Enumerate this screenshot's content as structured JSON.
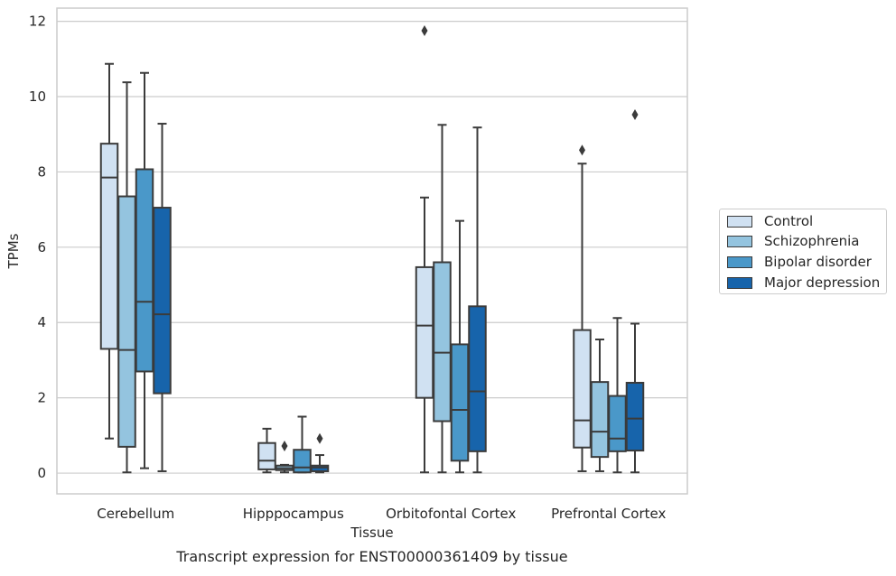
{
  "chart_data": {
    "type": "boxplot",
    "xlabel": "Tissue",
    "ylabel": "TPMs",
    "caption": "Transcript expression for ENST00000361409 by tissue",
    "categories": [
      "Cerebellum",
      "Hipppocampus",
      "Orbitofontal Cortex",
      "Prefrontal Cortex"
    ],
    "ylim": [
      -0.55,
      12.35
    ],
    "yticks": [
      0,
      2,
      4,
      6,
      8,
      10,
      12
    ],
    "grid": true,
    "legend_position": "right",
    "series": [
      {
        "name": "Control",
        "color": "#d0e1f2",
        "boxes": [
          {
            "whisker_low": 0.92,
            "q1": 3.3,
            "median": 7.85,
            "q3": 8.75,
            "whisker_high": 10.87,
            "outliers": []
          },
          {
            "whisker_low": 0.02,
            "q1": 0.1,
            "median": 0.33,
            "q3": 0.8,
            "whisker_high": 1.18,
            "outliers": []
          },
          {
            "whisker_low": 0.02,
            "q1": 2.0,
            "median": 3.92,
            "q3": 5.47,
            "whisker_high": 7.32,
            "outliers": [
              11.75
            ]
          },
          {
            "whisker_low": 0.05,
            "q1": 0.68,
            "median": 1.4,
            "q3": 3.8,
            "whisker_high": 8.22,
            "outliers": [
              8.58
            ]
          }
        ]
      },
      {
        "name": "Schizophrenia",
        "color": "#94c4df",
        "boxes": [
          {
            "whisker_low": 0.02,
            "q1": 0.7,
            "median": 3.27,
            "q3": 7.35,
            "whisker_high": 10.38,
            "outliers": []
          },
          {
            "whisker_low": 0.02,
            "q1": 0.08,
            "median": 0.13,
            "q3": 0.2,
            "whisker_high": 0.22,
            "outliers": [
              0.72
            ]
          },
          {
            "whisker_low": 0.02,
            "q1": 1.38,
            "median": 3.2,
            "q3": 5.6,
            "whisker_high": 9.25,
            "outliers": []
          },
          {
            "whisker_low": 0.05,
            "q1": 0.43,
            "median": 1.1,
            "q3": 2.42,
            "whisker_high": 3.55,
            "outliers": []
          }
        ]
      },
      {
        "name": "Bipolar disorder",
        "color": "#4a98c9",
        "boxes": [
          {
            "whisker_low": 0.13,
            "q1": 2.7,
            "median": 4.55,
            "q3": 8.07,
            "whisker_high": 10.63,
            "outliers": []
          },
          {
            "whisker_low": 0.02,
            "q1": 0.02,
            "median": 0.15,
            "q3": 0.62,
            "whisker_high": 1.5,
            "outliers": []
          },
          {
            "whisker_low": 0.02,
            "q1": 0.33,
            "median": 1.68,
            "q3": 3.42,
            "whisker_high": 6.7,
            "outliers": []
          },
          {
            "whisker_low": 0.02,
            "q1": 0.58,
            "median": 0.92,
            "q3": 2.05,
            "whisker_high": 4.12,
            "outliers": []
          }
        ]
      },
      {
        "name": "Major depression",
        "color": "#1764ab",
        "boxes": [
          {
            "whisker_low": 0.05,
            "q1": 2.12,
            "median": 4.22,
            "q3": 7.05,
            "whisker_high": 9.28,
            "outliers": []
          },
          {
            "whisker_low": 0.02,
            "q1": 0.05,
            "median": 0.15,
            "q3": 0.2,
            "whisker_high": 0.48,
            "outliers": [
              0.92
            ]
          },
          {
            "whisker_low": 0.02,
            "q1": 0.58,
            "median": 2.17,
            "q3": 4.43,
            "whisker_high": 9.18,
            "outliers": []
          },
          {
            "whisker_low": 0.02,
            "q1": 0.6,
            "median": 1.45,
            "q3": 2.4,
            "whisker_high": 3.97,
            "outliers": [
              9.52
            ]
          }
        ]
      }
    ]
  }
}
